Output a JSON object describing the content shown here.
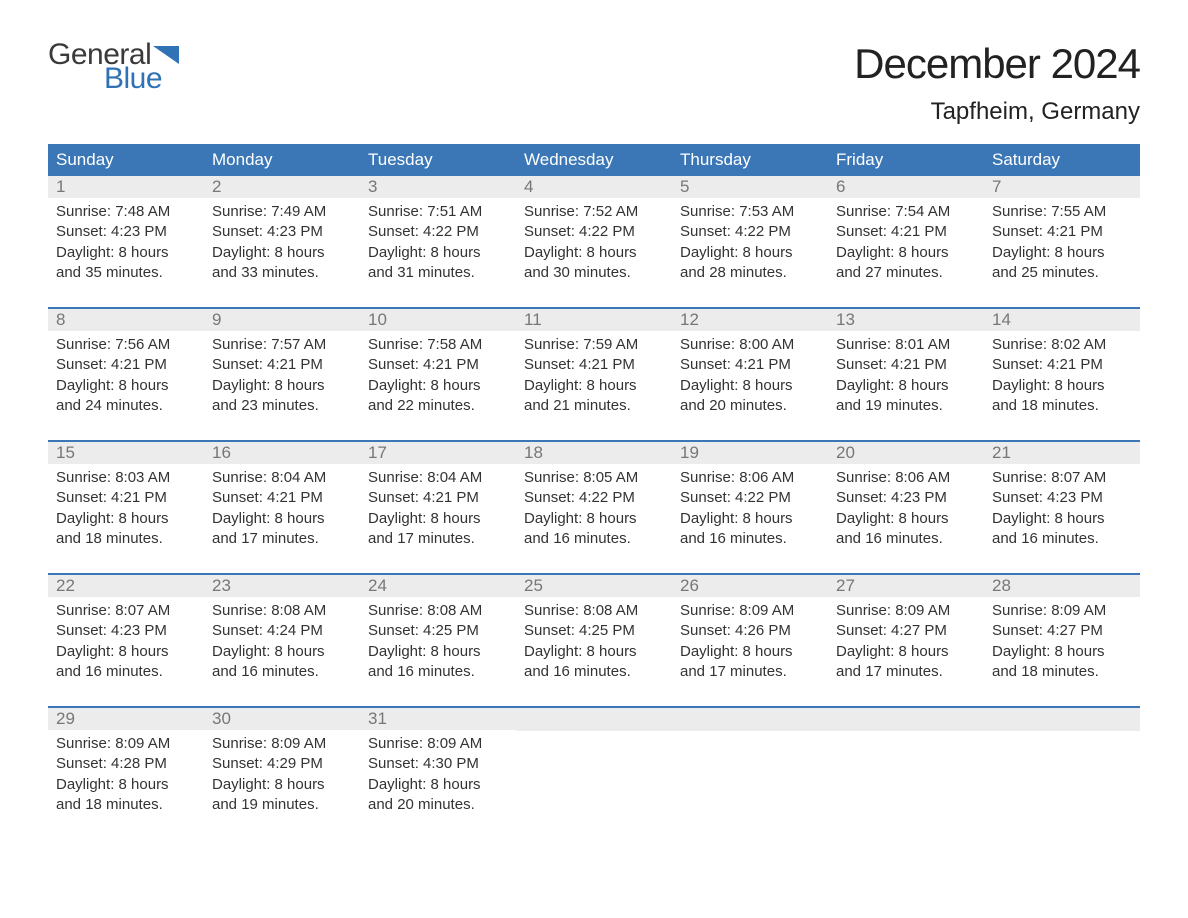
{
  "brand": {
    "general": "General",
    "blue": "Blue",
    "flag_color": "#2f72b6"
  },
  "title": "December 2024",
  "location": "Tapfheim, Germany",
  "colors": {
    "header_bg": "#3b77b6",
    "header_text": "#ffffff",
    "rule": "#3b77b6",
    "number_bg": "#ececec",
    "number_text": "#777777",
    "body_text": "#333333",
    "background": "#ffffff"
  },
  "day_headers": [
    "Sunday",
    "Monday",
    "Tuesday",
    "Wednesday",
    "Thursday",
    "Friday",
    "Saturday"
  ],
  "weeks": [
    [
      {
        "n": "1",
        "sunrise": "7:48 AM",
        "sunset": "4:23 PM",
        "dl1": "8 hours",
        "dl2": "and 35 minutes."
      },
      {
        "n": "2",
        "sunrise": "7:49 AM",
        "sunset": "4:23 PM",
        "dl1": "8 hours",
        "dl2": "and 33 minutes."
      },
      {
        "n": "3",
        "sunrise": "7:51 AM",
        "sunset": "4:22 PM",
        "dl1": "8 hours",
        "dl2": "and 31 minutes."
      },
      {
        "n": "4",
        "sunrise": "7:52 AM",
        "sunset": "4:22 PM",
        "dl1": "8 hours",
        "dl2": "and 30 minutes."
      },
      {
        "n": "5",
        "sunrise": "7:53 AM",
        "sunset": "4:22 PM",
        "dl1": "8 hours",
        "dl2": "and 28 minutes."
      },
      {
        "n": "6",
        "sunrise": "7:54 AM",
        "sunset": "4:21 PM",
        "dl1": "8 hours",
        "dl2": "and 27 minutes."
      },
      {
        "n": "7",
        "sunrise": "7:55 AM",
        "sunset": "4:21 PM",
        "dl1": "8 hours",
        "dl2": "and 25 minutes."
      }
    ],
    [
      {
        "n": "8",
        "sunrise": "7:56 AM",
        "sunset": "4:21 PM",
        "dl1": "8 hours",
        "dl2": "and 24 minutes."
      },
      {
        "n": "9",
        "sunrise": "7:57 AM",
        "sunset": "4:21 PM",
        "dl1": "8 hours",
        "dl2": "and 23 minutes."
      },
      {
        "n": "10",
        "sunrise": "7:58 AM",
        "sunset": "4:21 PM",
        "dl1": "8 hours",
        "dl2": "and 22 minutes."
      },
      {
        "n": "11",
        "sunrise": "7:59 AM",
        "sunset": "4:21 PM",
        "dl1": "8 hours",
        "dl2": "and 21 minutes."
      },
      {
        "n": "12",
        "sunrise": "8:00 AM",
        "sunset": "4:21 PM",
        "dl1": "8 hours",
        "dl2": "and 20 minutes."
      },
      {
        "n": "13",
        "sunrise": "8:01 AM",
        "sunset": "4:21 PM",
        "dl1": "8 hours",
        "dl2": "and 19 minutes."
      },
      {
        "n": "14",
        "sunrise": "8:02 AM",
        "sunset": "4:21 PM",
        "dl1": "8 hours",
        "dl2": "and 18 minutes."
      }
    ],
    [
      {
        "n": "15",
        "sunrise": "8:03 AM",
        "sunset": "4:21 PM",
        "dl1": "8 hours",
        "dl2": "and 18 minutes."
      },
      {
        "n": "16",
        "sunrise": "8:04 AM",
        "sunset": "4:21 PM",
        "dl1": "8 hours",
        "dl2": "and 17 minutes."
      },
      {
        "n": "17",
        "sunrise": "8:04 AM",
        "sunset": "4:21 PM",
        "dl1": "8 hours",
        "dl2": "and 17 minutes."
      },
      {
        "n": "18",
        "sunrise": "8:05 AM",
        "sunset": "4:22 PM",
        "dl1": "8 hours",
        "dl2": "and 16 minutes."
      },
      {
        "n": "19",
        "sunrise": "8:06 AM",
        "sunset": "4:22 PM",
        "dl1": "8 hours",
        "dl2": "and 16 minutes."
      },
      {
        "n": "20",
        "sunrise": "8:06 AM",
        "sunset": "4:23 PM",
        "dl1": "8 hours",
        "dl2": "and 16 minutes."
      },
      {
        "n": "21",
        "sunrise": "8:07 AM",
        "sunset": "4:23 PM",
        "dl1": "8 hours",
        "dl2": "and 16 minutes."
      }
    ],
    [
      {
        "n": "22",
        "sunrise": "8:07 AM",
        "sunset": "4:23 PM",
        "dl1": "8 hours",
        "dl2": "and 16 minutes."
      },
      {
        "n": "23",
        "sunrise": "8:08 AM",
        "sunset": "4:24 PM",
        "dl1": "8 hours",
        "dl2": "and 16 minutes."
      },
      {
        "n": "24",
        "sunrise": "8:08 AM",
        "sunset": "4:25 PM",
        "dl1": "8 hours",
        "dl2": "and 16 minutes."
      },
      {
        "n": "25",
        "sunrise": "8:08 AM",
        "sunset": "4:25 PM",
        "dl1": "8 hours",
        "dl2": "and 16 minutes."
      },
      {
        "n": "26",
        "sunrise": "8:09 AM",
        "sunset": "4:26 PM",
        "dl1": "8 hours",
        "dl2": "and 17 minutes."
      },
      {
        "n": "27",
        "sunrise": "8:09 AM",
        "sunset": "4:27 PM",
        "dl1": "8 hours",
        "dl2": "and 17 minutes."
      },
      {
        "n": "28",
        "sunrise": "8:09 AM",
        "sunset": "4:27 PM",
        "dl1": "8 hours",
        "dl2": "and 18 minutes."
      }
    ],
    [
      {
        "n": "29",
        "sunrise": "8:09 AM",
        "sunset": "4:28 PM",
        "dl1": "8 hours",
        "dl2": "and 18 minutes."
      },
      {
        "n": "30",
        "sunrise": "8:09 AM",
        "sunset": "4:29 PM",
        "dl1": "8 hours",
        "dl2": "and 19 minutes."
      },
      {
        "n": "31",
        "sunrise": "8:09 AM",
        "sunset": "4:30 PM",
        "dl1": "8 hours",
        "dl2": "and 20 minutes."
      },
      null,
      null,
      null,
      null
    ]
  ],
  "labels": {
    "sunrise": "Sunrise: ",
    "sunset": "Sunset: ",
    "daylight": "Daylight: "
  }
}
